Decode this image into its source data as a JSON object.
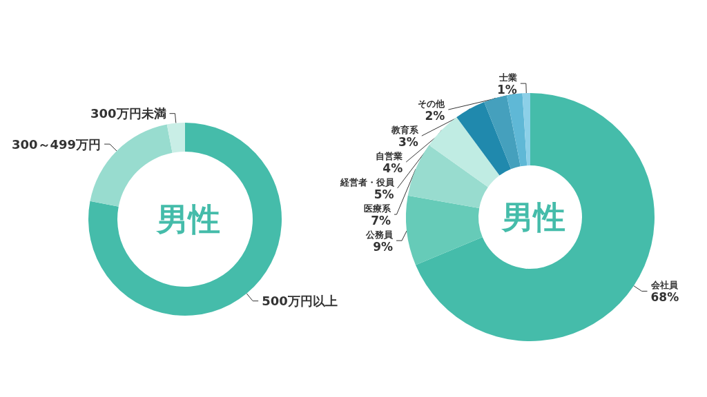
{
  "chart_data": [
    {
      "type": "donut",
      "title": "男性",
      "categories": [
        "500万円以上",
        "300～499万円",
        "300万円未満"
      ],
      "values": [
        78,
        19,
        3
      ],
      "colors": [
        "#45bcaa",
        "#98dccf",
        "#c9eee6"
      ],
      "legend": false
    },
    {
      "type": "donut",
      "title": "男性",
      "categories": [
        "会社員",
        "公務員",
        "医療系",
        "経営者・役員",
        "自営業",
        "教育系",
        "その他",
        "士業"
      ],
      "values": [
        68,
        9,
        7,
        5,
        4,
        3,
        2,
        1
      ],
      "value_labels": [
        "68%",
        "9%",
        "7%",
        "5%",
        "4%",
        "3%",
        "2%",
        "1%"
      ],
      "colors": [
        "#45bcaa",
        "#66cbb8",
        "#98dccf",
        "#c0ece3",
        "#2089ad",
        "#45a0bd",
        "#5fb8d6",
        "#8cd0e8"
      ],
      "legend": false
    }
  ]
}
